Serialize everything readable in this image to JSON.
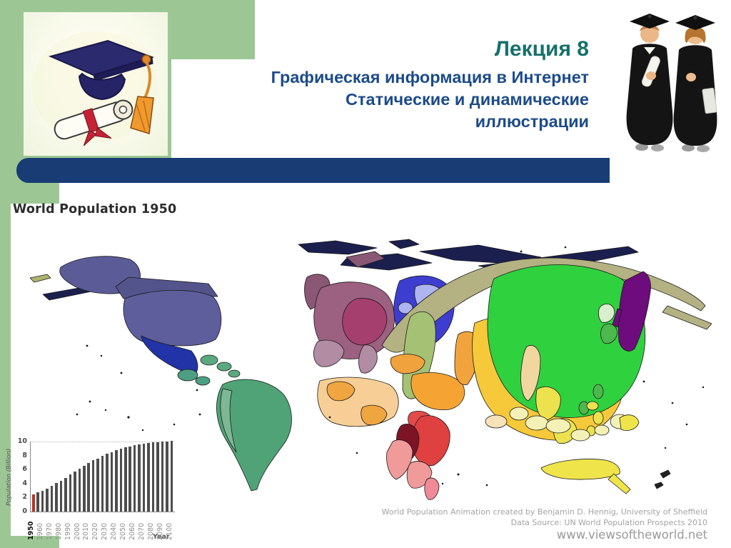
{
  "slide": {
    "title": "Лекция 8",
    "subtitle_lines": [
      "Графическая информация в Интернет",
      "Статические и динамические",
      "иллюстрации"
    ],
    "title_color": "#16706a",
    "subtitle_color": "#1c4b8a",
    "accent_green": "#9cc794",
    "accent_navy": "#1a3c74"
  },
  "map": {
    "heading": "World Population 1950",
    "credits": [
      "World Population Animation created by Benjamin D. Hennig, University of Sheffield",
      "Data Source: UN World Population Prospects 2010",
      "www.viewsoftheworld.net"
    ],
    "palette": {
      "arctic": "#1b1f4e",
      "alaska": "#5b5c97",
      "canada": "#54548c",
      "usa": "#5d5e9b",
      "mexico": "#2133a6",
      "camerica": "#4d9f83",
      "caribbean": "#5aaa7e",
      "samerica": "#4fa376",
      "samerica_light": "#7db894",
      "uk": "#8a5874",
      "weurope": "#9c6080",
      "weurope_dark": "#a53f6d",
      "weurope_light": "#b18ca3",
      "eeurope_royal": "#3d3ed0",
      "eeurope_light": "#aeb4ef",
      "eeurope_med": "#6377d8",
      "siberia": "#b4b183",
      "kazakh": "#a5c173",
      "turkey": "#f0a23c",
      "mideast": "#f5a433",
      "nafrica_tan": "#f7cf96",
      "nafrica_orange": "#f0a640",
      "egypt": "#e34b4b",
      "eafrica_red": "#df4040",
      "eafrica_pink": "#f19a9a",
      "eafrica_dark": "#7d1426",
      "madagascar": "#ef8a96",
      "pakistan": "#f2a43c",
      "india": "#f6c93a",
      "srilanka": "#f8e2b8",
      "china": "#2fd13f",
      "nkorea": "#d8eecc",
      "skorea": "#4db84d",
      "japan": "#6e0b7d",
      "burma": "#f2d6a0",
      "seasia": "#ece24e",
      "indonesia": "#f4f1b6",
      "australia": "#efe54a",
      "hawaii": "#b0b36e"
    }
  },
  "chart_data": {
    "type": "bar",
    "title": "",
    "x": [
      1950,
      1955,
      1960,
      1965,
      1970,
      1975,
      1980,
      1985,
      1990,
      1995,
      2000,
      2005,
      2010,
      2015,
      2020,
      2025,
      2030,
      2035,
      2040,
      2045,
      2050,
      2055,
      2060,
      2065,
      2070,
      2075,
      2080,
      2085,
      2090,
      2095,
      2100
    ],
    "values": [
      2.5,
      2.8,
      3.0,
      3.3,
      3.7,
      4.1,
      4.4,
      4.8,
      5.3,
      5.7,
      6.1,
      6.5,
      6.9,
      7.3,
      7.6,
      8.0,
      8.3,
      8.5,
      8.8,
      9.0,
      9.2,
      9.3,
      9.5,
      9.6,
      9.7,
      9.8,
      9.9,
      9.9,
      10.0,
      10.0,
      10.1
    ],
    "xlabel": "Year",
    "ylabel": "Population (Billion)",
    "yticks": [
      0,
      2,
      4,
      6,
      8,
      10
    ],
    "ylim": [
      0,
      10.5
    ],
    "xtick_label_step_years": 10,
    "bar_color": "#4d4d4d",
    "highlight_index": 0,
    "highlight_color": "#b5352c",
    "grid": "dotted line at 10",
    "legend": "none"
  }
}
